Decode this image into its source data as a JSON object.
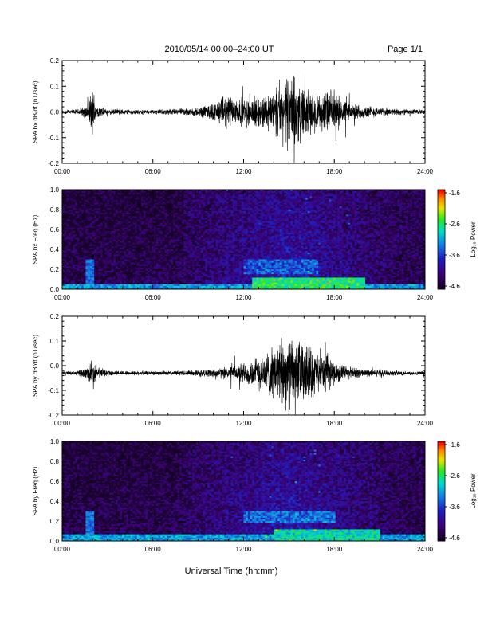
{
  "header": {
    "title": "2010/05/14  00:00–24:00 UT",
    "page": "Page 1/1"
  },
  "xaxis_label": "Universal Time (hh:mm)",
  "colorscale": {
    "label": "Log₁₀ Power",
    "ticks": [
      "-1.6",
      "-2.6",
      "-3.6",
      "-4.6"
    ],
    "range": [
      -4.6,
      -1.6
    ]
  },
  "chart_data": [
    {
      "type": "line",
      "id": "bx-waveform",
      "ylabel": "SPA bx dB/dt (nT/sec)",
      "xlabel": "",
      "xlim": [
        0,
        24
      ],
      "xticks": [
        "00:00",
        "06:00",
        "12:00",
        "18:00",
        "24:00"
      ],
      "ylim": [
        -0.2,
        0.2
      ],
      "yticks": [
        "0.2",
        "0.1",
        "0.0",
        "-0.1",
        "-0.2"
      ],
      "baseline": 0.0,
      "envelope": {
        "x": [
          0,
          1,
          1.7,
          2.0,
          2.3,
          3,
          4,
          5,
          6,
          7,
          8,
          9,
          10,
          11,
          12,
          13,
          14,
          14.5,
          15,
          15.5,
          16,
          16.5,
          17,
          17.5,
          18,
          19,
          20,
          21,
          22,
          23,
          24
        ],
        "amp": [
          0.01,
          0.012,
          0.03,
          0.12,
          0.03,
          0.012,
          0.012,
          0.01,
          0.01,
          0.012,
          0.015,
          0.02,
          0.04,
          0.08,
          0.06,
          0.07,
          0.1,
          0.13,
          0.17,
          0.14,
          0.12,
          0.09,
          0.08,
          0.1,
          0.09,
          0.04,
          0.03,
          0.02,
          0.015,
          0.012,
          0.01
        ]
      }
    },
    {
      "type": "heatmap",
      "id": "bx-spectrogram",
      "ylabel": "SPA bx Freq (Hz)",
      "xlim": [
        0,
        24
      ],
      "xticks": [
        "00:00",
        "06:00",
        "12:00",
        "18:00",
        "24:00"
      ],
      "ylim": [
        0,
        1.0
      ],
      "yticks": [
        "1.0",
        "0.8",
        "0.6",
        "0.4",
        "0.2",
        "0.0"
      ],
      "zlim": [
        -4.6,
        -1.6
      ],
      "features": [
        {
          "name": "low-frequency band",
          "f_max": 0.05,
          "t_start": 0,
          "t_end": 24,
          "level": -3.0
        },
        {
          "name": "afternoon emission",
          "f_min": 0.15,
          "f_max": 0.3,
          "t_start": 12,
          "t_end": 17,
          "level": -3.3
        },
        {
          "name": "enhanced broadband",
          "f_max": 0.12,
          "t_start": 12.5,
          "t_end": 20,
          "level": -2.5
        }
      ]
    },
    {
      "type": "line",
      "id": "by-waveform",
      "ylabel": "SPA by dB/dt (nT/sec)",
      "xlabel": "",
      "xlim": [
        0,
        24
      ],
      "xticks": [
        "00:00",
        "06:00",
        "12:00",
        "18:00",
        "24:00"
      ],
      "ylim": [
        -0.2,
        0.2
      ],
      "yticks": [
        "0.2",
        "0.1",
        "0.0",
        "-0.1",
        "-0.2"
      ],
      "baseline": -0.03,
      "envelope": {
        "x": [
          0,
          1,
          1.7,
          2.0,
          2.3,
          3,
          4,
          5,
          6,
          7,
          8,
          9,
          10,
          11,
          12,
          13,
          14,
          14.5,
          15,
          15.5,
          16,
          16.5,
          17,
          17.5,
          18,
          19,
          20,
          21,
          22,
          23,
          24
        ],
        "amp": [
          0.008,
          0.01,
          0.03,
          0.08,
          0.03,
          0.012,
          0.01,
          0.01,
          0.01,
          0.01,
          0.012,
          0.015,
          0.02,
          0.03,
          0.05,
          0.08,
          0.12,
          0.16,
          0.17,
          0.15,
          0.15,
          0.12,
          0.08,
          0.09,
          0.05,
          0.03,
          0.02,
          0.015,
          0.012,
          0.01,
          0.008
        ]
      }
    },
    {
      "type": "heatmap",
      "id": "by-spectrogram",
      "ylabel": "SPA by Freq (Hz)",
      "xlim": [
        0,
        24
      ],
      "xticks": [
        "00:00",
        "06:00",
        "12:00",
        "18:00",
        "24:00"
      ],
      "ylim": [
        0,
        1.0
      ],
      "yticks": [
        "1.0",
        "0.8",
        "0.6",
        "0.4",
        "0.2",
        "0.0"
      ],
      "zlim": [
        -4.6,
        -1.6
      ],
      "features": [
        {
          "name": "low-frequency band",
          "f_max": 0.07,
          "t_start": 0,
          "t_end": 24,
          "level": -3.0
        },
        {
          "name": "afternoon emission",
          "f_min": 0.18,
          "f_max": 0.3,
          "t_start": 12,
          "t_end": 18,
          "level": -3.2
        },
        {
          "name": "enhanced broadband",
          "f_max": 0.12,
          "t_start": 14,
          "t_end": 21,
          "level": -2.7
        }
      ]
    }
  ]
}
